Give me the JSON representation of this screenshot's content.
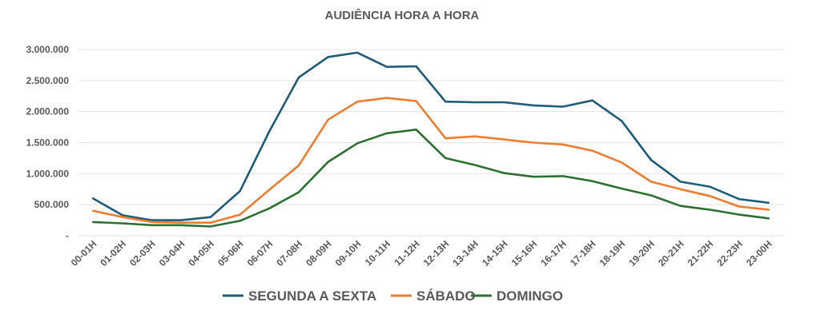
{
  "chart_data": {
    "type": "line",
    "title": "AUDIÊNCIA HORA A HORA",
    "xlabel": "",
    "ylabel": "",
    "ylim": [
      0,
      3000000
    ],
    "y_ticks": [
      {
        "value": 0,
        "label": "-"
      },
      {
        "value": 500000,
        "label": "500.000"
      },
      {
        "value": 1000000,
        "label": "1.000.000"
      },
      {
        "value": 1500000,
        "label": "1.500.000"
      },
      {
        "value": 2000000,
        "label": "2.000.000"
      },
      {
        "value": 2500000,
        "label": "2.500.000"
      },
      {
        "value": 3000000,
        "label": "3.000.000"
      }
    ],
    "grid": true,
    "legend_position": "bottom",
    "categories": [
      "00-01H",
      "01-02H",
      "02-03H",
      "03-04H",
      "04-05H",
      "05-06H",
      "06-07H",
      "07-08H",
      "08-09H",
      "09-10H",
      "10-11H",
      "11-12H",
      "12-13H",
      "13-14H",
      "14-15H",
      "15-16H",
      "16-17H",
      "17-18H",
      "18-19H",
      "19-20H",
      "20-21H",
      "21-22H",
      "22-23H",
      "23-00H"
    ],
    "series": [
      {
        "name": "SEGUNDA A SEXTA",
        "color": "#1f5c7a",
        "values": [
          600000,
          330000,
          250000,
          250000,
          300000,
          720000,
          1680000,
          2550000,
          2880000,
          2950000,
          2720000,
          2730000,
          2160000,
          2150000,
          2150000,
          2100000,
          2080000,
          2180000,
          1850000,
          1220000,
          870000,
          790000,
          590000,
          530000
        ]
      },
      {
        "name": "SÁBADO",
        "color": "#ed7d31",
        "values": [
          400000,
          300000,
          220000,
          210000,
          210000,
          340000,
          740000,
          1130000,
          1870000,
          2160000,
          2220000,
          2170000,
          1570000,
          1600000,
          1550000,
          1500000,
          1470000,
          1370000,
          1180000,
          870000,
          750000,
          640000,
          470000,
          420000
        ]
      },
      {
        "name": "DOMINGO",
        "color": "#2e7031",
        "values": [
          220000,
          200000,
          170000,
          170000,
          150000,
          240000,
          440000,
          700000,
          1190000,
          1490000,
          1650000,
          1710000,
          1250000,
          1140000,
          1010000,
          950000,
          960000,
          880000,
          760000,
          650000,
          480000,
          420000,
          340000,
          280000
        ]
      }
    ]
  }
}
